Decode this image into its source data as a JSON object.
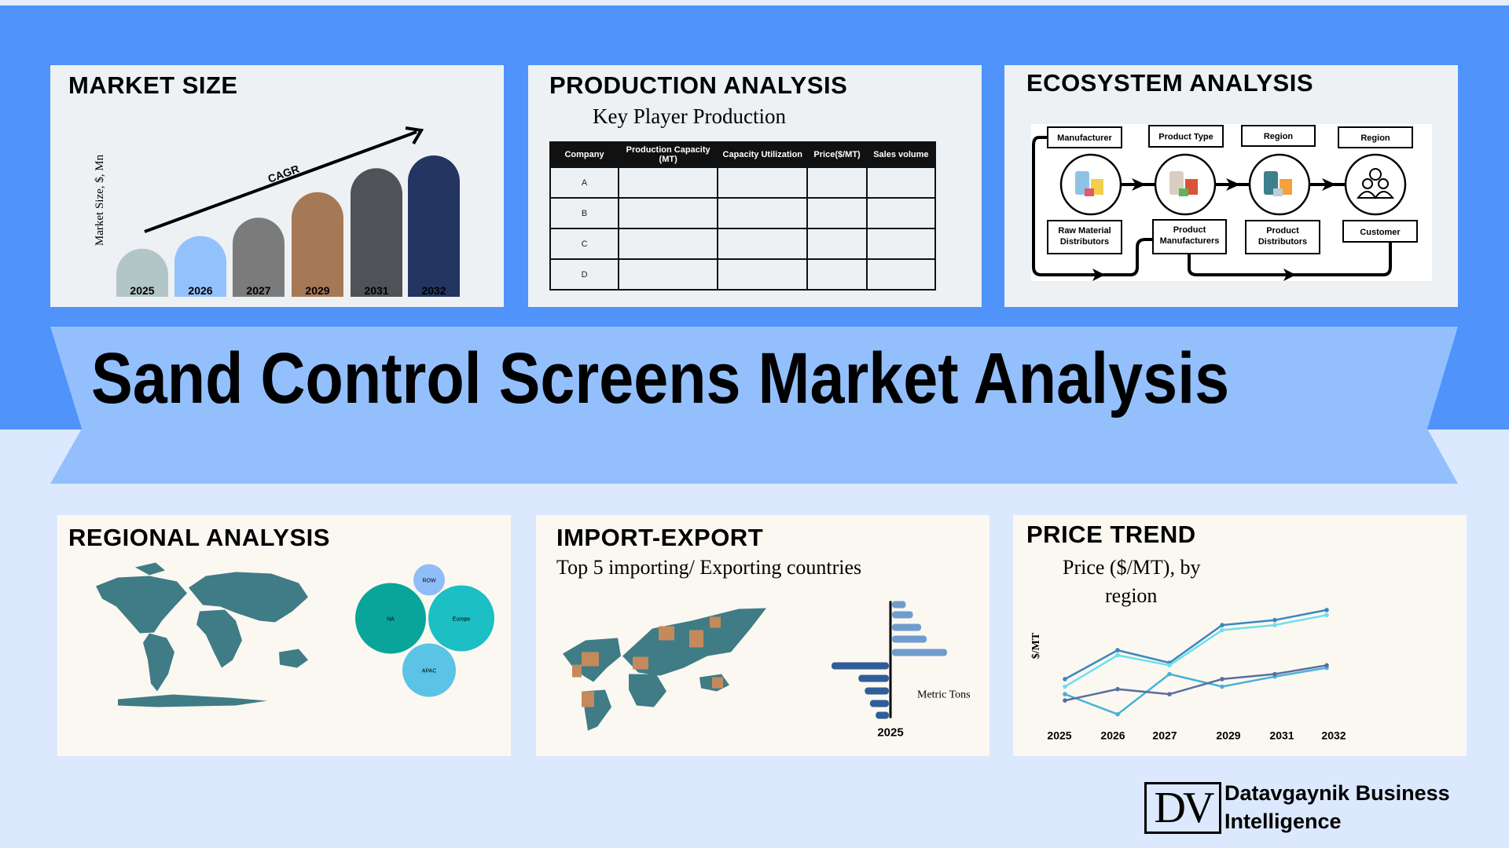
{
  "colors": {
    "top_band": "#4f93fb",
    "bottom_bg": "#dce8fd",
    "banner": "#93c0fd",
    "map": "#3f7c85"
  },
  "title": "Sand Control Screens Market Analysis",
  "market_size": {
    "title": "MARKET SIZE",
    "chart_data": {
      "type": "bar",
      "categories": [
        "2025",
        "2026",
        "2027",
        "2029",
        "2031",
        "2032"
      ],
      "values": [
        34,
        43,
        56,
        74,
        91,
        100
      ],
      "colors": [
        "#b3c6c7",
        "#93c1fc",
        "#7b7b7b",
        "#a57856",
        "#4f5357",
        "#233560"
      ],
      "ylabel": "Market Size, $, Mn",
      "annotation": "CAGR"
    }
  },
  "production": {
    "title": "PRODUCTION ANALYSIS",
    "subtitle": "Key Player Production",
    "columns": [
      "Company",
      "Production Capacity (MT)",
      "Capacity Utilization",
      "Price($/MT)",
      "Sales volume"
    ],
    "rows": [
      "A",
      "B",
      "C",
      "D"
    ]
  },
  "ecosystem": {
    "title": "ECOSYSTEM ANALYSIS",
    "top_labels": [
      "Manufacturer",
      "Product Type",
      "Region",
      "Region"
    ],
    "bottom_labels": [
      [
        "Raw Material",
        "Distributors"
      ],
      [
        "Product",
        "Manufacturers"
      ],
      [
        "Product",
        "Distributors"
      ],
      [
        "Customer",
        ""
      ]
    ],
    "icons": [
      "barrels-icon",
      "factory-icon",
      "distribution-truck-icon",
      "customers-icon"
    ]
  },
  "regional": {
    "title": "REGIONAL ANALYSIS",
    "bubbles": [
      {
        "label": "ROW",
        "color": "#8fbdf7"
      },
      {
        "label": "NA",
        "color": "#0aa59a"
      },
      {
        "label": "Europe",
        "color": "#1cbfc4"
      },
      {
        "label": "APAC",
        "color": "#5bc3e6"
      }
    ]
  },
  "import_export": {
    "title": "IMPORT-EXPORT",
    "subtitle": "Top 5 importing/ Exporting countries",
    "chart_data": {
      "type": "bar",
      "orientation": "horizontal-diverging",
      "x_label": "Metric Tons",
      "category": "2025",
      "series": [
        {
          "values": [
            25,
            38,
            53,
            63,
            100
          ],
          "color": "#6f9ccc"
        },
        {
          "values": [
            100,
            53,
            42,
            33,
            23
          ],
          "color": "#2f5d98"
        }
      ]
    }
  },
  "price_trend": {
    "title": "PRICE TREND",
    "subtitle_line1": "Price ($/MT), by",
    "subtitle_line2": "region",
    "chart_data": {
      "type": "line",
      "ylabel": "$/MT",
      "categories": [
        "2025",
        "2026",
        "2027",
        "2029",
        "2031",
        "2032"
      ],
      "ylim": [
        0,
        100
      ],
      "series": [
        {
          "values": [
            41,
            64,
            54,
            84,
            88,
            96
          ],
          "color": "#3b88c0"
        },
        {
          "values": [
            35,
            60,
            52,
            80,
            84,
            92
          ],
          "color": "#6ee0ea"
        },
        {
          "values": [
            29,
            13,
            45,
            35,
            43,
            50
          ],
          "color": "#45b3d6"
        },
        {
          "values": [
            24,
            33,
            29,
            41,
            45,
            52
          ],
          "color": "#5a6ea0"
        }
      ]
    }
  },
  "logo": {
    "mark": "DV",
    "line1": "Datavgaynik Business",
    "line2": "Intelligence"
  }
}
